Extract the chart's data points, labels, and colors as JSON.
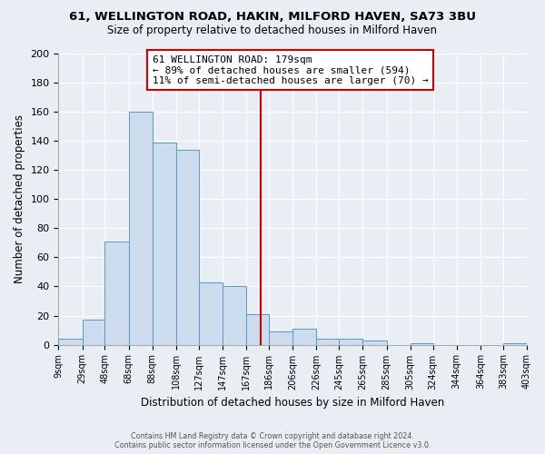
{
  "title1": "61, WELLINGTON ROAD, HAKIN, MILFORD HAVEN, SA73 3BU",
  "title2": "Size of property relative to detached houses in Milford Haven",
  "xlabel": "Distribution of detached houses by size in Milford Haven",
  "ylabel": "Number of detached properties",
  "bar_color": "#ccdcec",
  "bar_edge_color": "#5599cc",
  "vline_color": "#cc0000",
  "vline_x": 179,
  "bin_edges": [
    9,
    29,
    48,
    68,
    88,
    108,
    127,
    147,
    167,
    186,
    206,
    226,
    245,
    265,
    285,
    305,
    324,
    344,
    364,
    383,
    403
  ],
  "bin_labels": [
    "9sqm",
    "29sqm",
    "48sqm",
    "68sqm",
    "88sqm",
    "108sqm",
    "127sqm",
    "147sqm",
    "167sqm",
    "186sqm",
    "206sqm",
    "226sqm",
    "245sqm",
    "265sqm",
    "285sqm",
    "305sqm",
    "324sqm",
    "344sqm",
    "364sqm",
    "383sqm",
    "403sqm"
  ],
  "counts": [
    4,
    17,
    71,
    160,
    139,
    134,
    43,
    40,
    21,
    9,
    11,
    4,
    4,
    3,
    0,
    1,
    0,
    0,
    0,
    1
  ],
  "ylim": [
    0,
    200
  ],
  "yticks": [
    0,
    20,
    40,
    60,
    80,
    100,
    120,
    140,
    160,
    180,
    200
  ],
  "annotation_title": "61 WELLINGTON ROAD: 179sqm",
  "annotation_line1": "← 89% of detached houses are smaller (594)",
  "annotation_line2": "11% of semi-detached houses are larger (70) →",
  "footer1": "Contains HM Land Registry data © Crown copyright and database right 2024.",
  "footer2": "Contains public sector information licensed under the Open Government Licence v3.0.",
  "background_color": "#e8eef4"
}
